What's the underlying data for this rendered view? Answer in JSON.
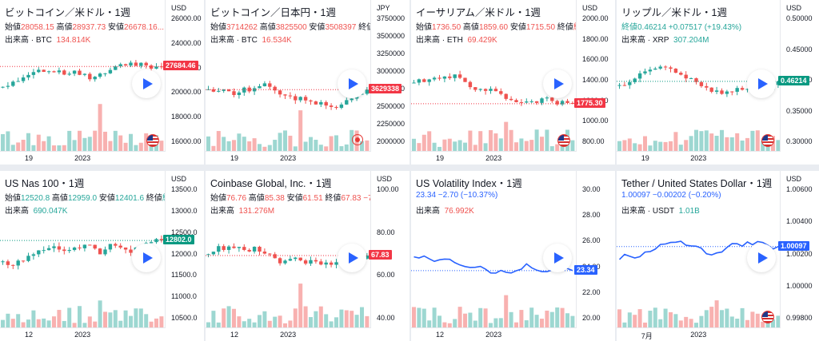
{
  "panels": [
    {
      "title": "ビットコイン／米ドル・1週",
      "o": "28058.15",
      "h": "28937.73",
      "l": "26678.16...",
      "c": "",
      "vol": "134.814K",
      "vol_ticker": "BTC",
      "unit": "USD",
      "ticks": [
        "26000.00",
        "24000.00",
        "22000.00",
        "20000.00",
        "18000.00",
        "16000.00"
      ],
      "badge": "27684.46",
      "badge_color": "#f23645",
      "xlabels": [
        "19",
        "2023"
      ],
      "type": "candle",
      "flag": "us"
    },
    {
      "title": "ビットコイン／日本円・1週",
      "o": "3714262",
      "h": "3825500",
      "l": "3508397",
      "c": "終値...",
      "vol": "16.534K",
      "vol_ticker": "BTC",
      "unit": "JPY",
      "ticks": [
        "3750000",
        "3500000",
        "3250000",
        "3000000",
        "2750000",
        "2500000",
        "2250000",
        "2000000"
      ],
      "badge": "3629338",
      "badge_color": "#f23645",
      "xlabels": [
        "19",
        "2023"
      ],
      "type": "candle",
      "flag": "rec"
    },
    {
      "title": "イーサリアム／米ドル・1週",
      "o": "1736.50",
      "h": "1859.60",
      "l": "1715.50",
      "c": "終値1...",
      "vol": "69.429K",
      "vol_ticker": "ETH",
      "unit": "USD",
      "ticks": [
        "2000.00",
        "1800.00",
        "1600.00",
        "1400.00",
        "1200.00",
        "1000.00",
        "800.00"
      ],
      "badge": "1775.30",
      "badge_color": "#f23645",
      "xlabels": [
        "19",
        "2023"
      ],
      "type": "candle",
      "flag": "us"
    },
    {
      "title": "リップル／米ドル・1週",
      "close_line": "終値0.46214 +0.07517 (+19.43%)",
      "vol": "307.204M",
      "vol_ticker": "XRP",
      "unit": "USD",
      "ticks": [
        "0.50000",
        "0.45000",
        "0.40000",
        "0.35000",
        "0.30000"
      ],
      "badge": "0.46214",
      "badge_color": "#089981",
      "xlabels": [
        "19",
        "2023"
      ],
      "type": "candle",
      "flag": "us"
    },
    {
      "title": "US Nas 100・1週",
      "o": "12520.8",
      "h": "12959.0",
      "l": "12401.6",
      "c": "終値1...",
      "vol": "690.047K",
      "vol_ticker": "",
      "unit": "USD",
      "ticks": [
        "13500.0",
        "13000.0",
        "12500.0",
        "12000.0",
        "11500.0",
        "11000.0",
        "10500.0"
      ],
      "badge": "12802.0",
      "badge_color": "#089981",
      "xlabels": [
        "12",
        "2023"
      ],
      "type": "candle",
      "flag": ""
    },
    {
      "title": "Coinbase Global, Inc.・1週",
      "o": "76.76",
      "h": "85.38",
      "l": "61.51",
      "c": "67.83 −7...",
      "vol": "131.276M",
      "vol_ticker": "",
      "unit": "USD",
      "ticks": [
        "100.00",
        "80.00",
        "60.00",
        "40.00"
      ],
      "badge": "67.83",
      "badge_color": "#f23645",
      "xlabels": [
        "12",
        "2023"
      ],
      "type": "candle",
      "flag": ""
    },
    {
      "title": "US Volatility Index・1週",
      "close_line": "23.34 −2.70 (−10.37%)",
      "vol": "76.992K",
      "vol_ticker": "",
      "unit": "",
      "ticks": [
        "30.00",
        "28.00",
        "26.00",
        "24.00",
        "22.00",
        "20.00"
      ],
      "badge": "23.34",
      "badge_color": "#2962ff",
      "xlabels": [
        "12",
        "2023"
      ],
      "type": "line",
      "flag": ""
    },
    {
      "title": "Tether / United States Dollar・1週",
      "close_line": "1.00097 −0.00202 (−0.20%)",
      "vol": "1.01B",
      "vol_ticker": "USDT",
      "unit": "USD",
      "ticks": [
        "1.00600",
        "1.00400",
        "1.00200",
        "1.00000",
        "0.99800"
      ],
      "badge": "1.00097",
      "badge_color": "#2962ff",
      "xlabels": [
        "7月",
        "2023"
      ],
      "type": "line",
      "flag": "us"
    }
  ],
  "labels": {
    "open": "始値",
    "high": "高値",
    "low": "安値",
    "close": "終値",
    "volume": "出来高"
  }
}
